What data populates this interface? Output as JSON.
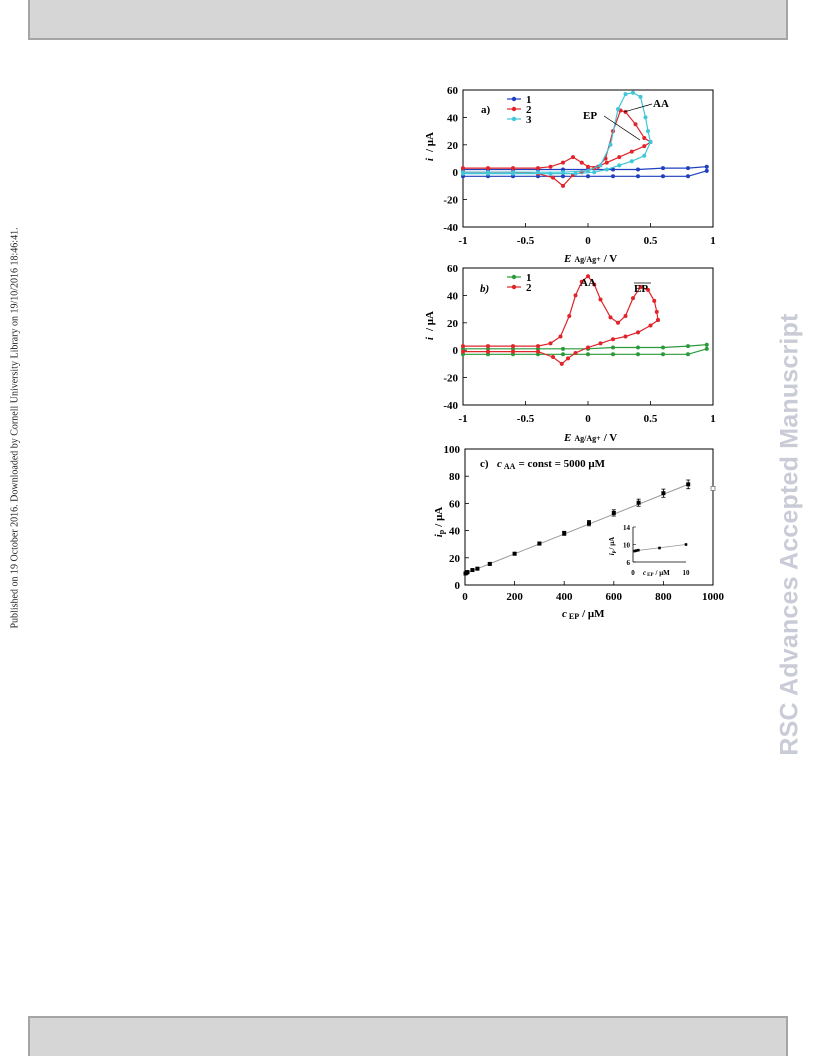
{
  "side_note": "Published on 19 October 2016. Downloaded by Cornell University Library on 19/10/2016 18:46:41.",
  "watermark": "RSC Advances Accepted Manuscript",
  "figure": {
    "panel_a": {
      "tag": "a)",
      "y_label": "i",
      "y_unit": "/ μA",
      "x_label": "E",
      "x_sub": "Ag/Ag+",
      "x_unit": "/ V",
      "x_ticks": [
        "-1",
        "-0.5",
        "0",
        "0.5",
        "1"
      ],
      "y_ticks": [
        "60",
        "40",
        "20",
        "0",
        "-20",
        "-40"
      ],
      "legend": [
        "1",
        "2",
        "3"
      ],
      "annotations": [
        "EP",
        "AA"
      ],
      "colors": [
        "#1f3fbf",
        "#e0242a",
        "#3fc6d8"
      ]
    },
    "panel_b": {
      "tag": "b)",
      "y_label": "i",
      "y_unit": "/ μA",
      "x_label": "E",
      "x_sub": "Ag/Ag+",
      "x_unit": "/ V",
      "x_ticks": [
        "-1",
        "-0.5",
        "0",
        "0.5",
        "1"
      ],
      "y_ticks": [
        "60",
        "40",
        "20",
        "0",
        "-20",
        "-40"
      ],
      "legend": [
        "1",
        "2"
      ],
      "annotations": [
        "AA",
        "EP"
      ],
      "colors": [
        "#2a9a3a",
        "#e0242a"
      ]
    },
    "panel_c": {
      "tag": "c)",
      "condition_var": "c",
      "condition_sub": "AA",
      "condition_text": "= const = 5000 μM",
      "y_label": "i",
      "y_sub": "p",
      "y_unit": "/ μA",
      "x_label": "c",
      "x_sub": "EP",
      "x_unit": "/ μM",
      "x_ticks": [
        "0",
        "200",
        "400",
        "600",
        "800",
        "1000"
      ],
      "y_ticks": [
        "100",
        "80",
        "60",
        "40",
        "20",
        "0"
      ],
      "inset": {
        "y_label": "i",
        "y_sub": "p",
        "y_unit": "/ μA",
        "x_label": "c",
        "x_sub": "EP",
        "x_unit": "/ μM",
        "x_ticks": [
          "0",
          "10"
        ],
        "y_ticks": [
          "14",
          "10",
          "6"
        ]
      }
    }
  },
  "chart_data": [
    {
      "type": "line",
      "panel": "a",
      "xlabel": "E Ag/Ag+ / V",
      "ylabel": "i / μA",
      "xlim": [
        -1,
        1
      ],
      "ylim": [
        -40,
        60
      ],
      "legend": "top-left",
      "series": [
        {
          "name": "1",
          "color": "#1f3fbf",
          "forward": [
            [
              -1.0,
              2
            ],
            [
              -0.8,
              2
            ],
            [
              -0.6,
              2
            ],
            [
              -0.4,
              2
            ],
            [
              -0.2,
              2
            ],
            [
              0.0,
              2
            ],
            [
              0.2,
              2
            ],
            [
              0.4,
              2
            ],
            [
              0.6,
              3
            ],
            [
              0.8,
              3
            ],
            [
              0.95,
              4
            ]
          ],
          "reverse": [
            [
              0.95,
              1
            ],
            [
              0.8,
              -3
            ],
            [
              0.6,
              -3
            ],
            [
              0.4,
              -3
            ],
            [
              0.2,
              -3
            ],
            [
              0.0,
              -3
            ],
            [
              -0.2,
              -3
            ],
            [
              -0.4,
              -3
            ],
            [
              -0.6,
              -3
            ],
            [
              -0.8,
              -3
            ],
            [
              -1.0,
              -3
            ]
          ]
        },
        {
          "name": "2",
          "color": "#e0242a",
          "forward": [
            [
              -1.0,
              3
            ],
            [
              -0.8,
              3
            ],
            [
              -0.6,
              3
            ],
            [
              -0.4,
              3
            ],
            [
              -0.3,
              4
            ],
            [
              -0.2,
              7
            ],
            [
              -0.12,
              11
            ],
            [
              -0.05,
              7
            ],
            [
              0.0,
              4
            ],
            [
              0.08,
              4
            ],
            [
              0.14,
              10
            ],
            [
              0.2,
              30
            ],
            [
              0.26,
              45
            ],
            [
              0.3,
              44
            ],
            [
              0.38,
              35
            ],
            [
              0.45,
              25
            ],
            [
              0.5,
              22
            ]
          ],
          "reverse": [
            [
              0.5,
              22
            ],
            [
              0.45,
              19
            ],
            [
              0.35,
              15
            ],
            [
              0.25,
              11
            ],
            [
              0.15,
              7
            ],
            [
              0.05,
              3
            ],
            [
              -0.05,
              0
            ],
            [
              -0.12,
              -2
            ],
            [
              -0.2,
              -10
            ],
            [
              -0.28,
              -4
            ],
            [
              -0.4,
              -1
            ],
            [
              -0.6,
              0
            ],
            [
              -0.8,
              0
            ],
            [
              -1.0,
              0
            ]
          ]
        },
        {
          "name": "3",
          "color": "#3fc6d8",
          "forward": [
            [
              -1.0,
              0
            ],
            [
              -0.8,
              0
            ],
            [
              -0.6,
              0
            ],
            [
              -0.4,
              0
            ],
            [
              -0.2,
              0
            ],
            [
              0.0,
              1
            ],
            [
              0.1,
              5
            ],
            [
              0.18,
              20
            ],
            [
              0.24,
              46
            ],
            [
              0.3,
              57
            ],
            [
              0.36,
              58
            ],
            [
              0.42,
              55
            ],
            [
              0.46,
              40
            ],
            [
              0.48,
              30
            ],
            [
              0.5,
              22
            ]
          ],
          "reverse": [
            [
              0.5,
              22
            ],
            [
              0.45,
              12
            ],
            [
              0.35,
              8
            ],
            [
              0.25,
              5
            ],
            [
              0.15,
              2
            ],
            [
              0.05,
              0
            ],
            [
              -0.1,
              -1
            ],
            [
              -0.3,
              -1
            ],
            [
              -0.6,
              -1
            ],
            [
              -0.8,
              -1
            ],
            [
              -1.0,
              -1
            ]
          ]
        }
      ]
    },
    {
      "type": "line",
      "panel": "b",
      "xlabel": "E Ag/Ag+ / V",
      "ylabel": "i / μA",
      "xlim": [
        -1,
        1
      ],
      "ylim": [
        -40,
        60
      ],
      "legend": "top-left",
      "series": [
        {
          "name": "1",
          "color": "#2a9a3a",
          "forward": [
            [
              -1.0,
              1
            ],
            [
              -0.8,
              1
            ],
            [
              -0.6,
              1
            ],
            [
              -0.4,
              1
            ],
            [
              -0.2,
              1
            ],
            [
              0.0,
              1
            ],
            [
              0.2,
              2
            ],
            [
              0.4,
              2
            ],
            [
              0.6,
              2
            ],
            [
              0.8,
              3
            ],
            [
              0.95,
              4
            ]
          ],
          "reverse": [
            [
              0.95,
              1
            ],
            [
              0.8,
              -3
            ],
            [
              0.6,
              -3
            ],
            [
              0.4,
              -3
            ],
            [
              0.2,
              -3
            ],
            [
              0.0,
              -3
            ],
            [
              -0.2,
              -3
            ],
            [
              -0.4,
              -3
            ],
            [
              -0.6,
              -3
            ],
            [
              -0.8,
              -3
            ],
            [
              -1.0,
              -3
            ]
          ]
        },
        {
          "name": "2",
          "color": "#e0242a",
          "forward": [
            [
              -1.0,
              3
            ],
            [
              -0.8,
              3
            ],
            [
              -0.6,
              3
            ],
            [
              -0.4,
              3
            ],
            [
              -0.3,
              5
            ],
            [
              -0.22,
              10
            ],
            [
              -0.15,
              25
            ],
            [
              -0.1,
              40
            ],
            [
              -0.05,
              50
            ],
            [
              0.0,
              54
            ],
            [
              0.05,
              48
            ],
            [
              0.1,
              37
            ],
            [
              0.18,
              24
            ],
            [
              0.24,
              20
            ],
            [
              0.3,
              25
            ],
            [
              0.36,
              38
            ],
            [
              0.42,
              46
            ],
            [
              0.48,
              44
            ],
            [
              0.53,
              36
            ],
            [
              0.55,
              28
            ],
            [
              0.56,
              22
            ]
          ],
          "reverse": [
            [
              0.56,
              22
            ],
            [
              0.5,
              18
            ],
            [
              0.4,
              13
            ],
            [
              0.3,
              10
            ],
            [
              0.2,
              8
            ],
            [
              0.1,
              5
            ],
            [
              0.0,
              2
            ],
            [
              -0.1,
              -2
            ],
            [
              -0.16,
              -6
            ],
            [
              -0.21,
              -10
            ],
            [
              -0.28,
              -5
            ],
            [
              -0.4,
              -1
            ],
            [
              -0.6,
              -1
            ],
            [
              -0.8,
              -1
            ],
            [
              -1.0,
              -1
            ]
          ]
        }
      ]
    },
    {
      "type": "scatter",
      "panel": "c",
      "xlabel": "c EP / μM",
      "ylabel": "ip / μA",
      "xlim": [
        0,
        1000
      ],
      "ylim": [
        0,
        100
      ],
      "series": [
        {
          "name": "",
          "x": [
            2,
            6,
            10,
            30,
            50,
            100,
            200,
            300,
            400,
            500,
            600,
            700,
            800,
            900
          ],
          "y": [
            8.5,
            9.0,
            9.5,
            11,
            12,
            15.5,
            23,
            30.5,
            38,
            45.5,
            53,
            60.5,
            67.5,
            74
          ],
          "error": [
            0.5,
            0.5,
            0.5,
            0.6,
            0.6,
            0.8,
            1,
            1.2,
            1.5,
            2,
            2.3,
            2.6,
            3,
            3.2
          ]
        },
        {
          "name": "",
          "x": [
            1000
          ],
          "y": [
            71
          ]
        }
      ],
      "inset": {
        "xlabel": "c EP / μM",
        "ylabel": "ip / μA",
        "xlim": [
          0,
          10
        ],
        "ylim": [
          6,
          14
        ],
        "x": [
          0.3,
          0.6,
          1,
          5,
          10
        ],
        "y": [
          8.5,
          8.6,
          8.7,
          9.2,
          10
        ]
      }
    }
  ]
}
